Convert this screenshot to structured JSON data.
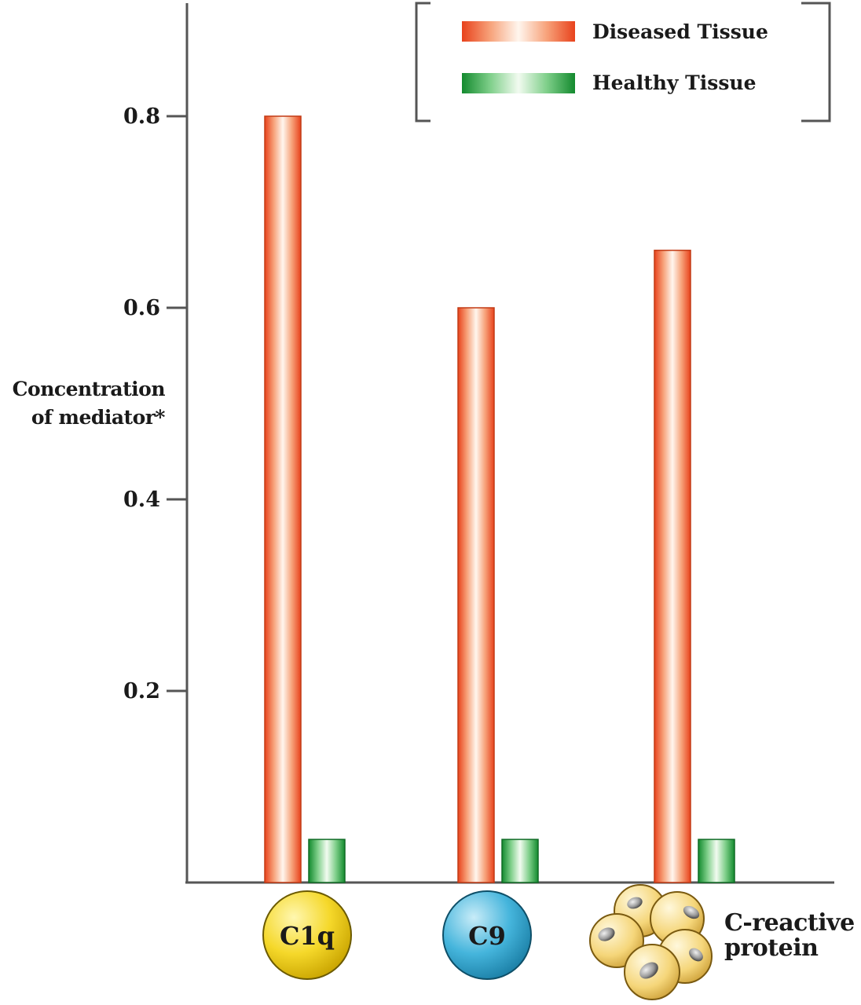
{
  "chart_data": {
    "type": "bar",
    "ylabel_lines": [
      "Concentration",
      "of mediator*"
    ],
    "ylim": [
      0,
      0.9
    ],
    "yticks": [
      0.2,
      0.4,
      0.6,
      0.8
    ],
    "ytick_labels": [
      "0.2",
      "0.4",
      "0.6",
      "0.8"
    ],
    "categories": [
      "C1q",
      "C9",
      "C-reactive protein"
    ],
    "series": [
      {
        "name": "Diseased Tissue",
        "values": [
          0.8,
          0.6,
          0.66
        ],
        "color": "#f0542a"
      },
      {
        "name": "Healthy Tissue",
        "values": [
          0.045,
          0.045,
          0.045
        ],
        "color": "#1f9a3d"
      }
    ],
    "legend_position": "top-right",
    "grid": false
  },
  "category_badges": {
    "c1q": {
      "text": "C1q",
      "color": "#f2d21e",
      "icon": "yellow-circle-icon"
    },
    "c9": {
      "text": "C9",
      "color": "#3fb0d8",
      "icon": "blue-circle-icon"
    },
    "crp": {
      "line1": "C-reactive",
      "line2": "protein",
      "icon": "pentamer-cluster-icon",
      "color": "#f5d67a"
    }
  }
}
